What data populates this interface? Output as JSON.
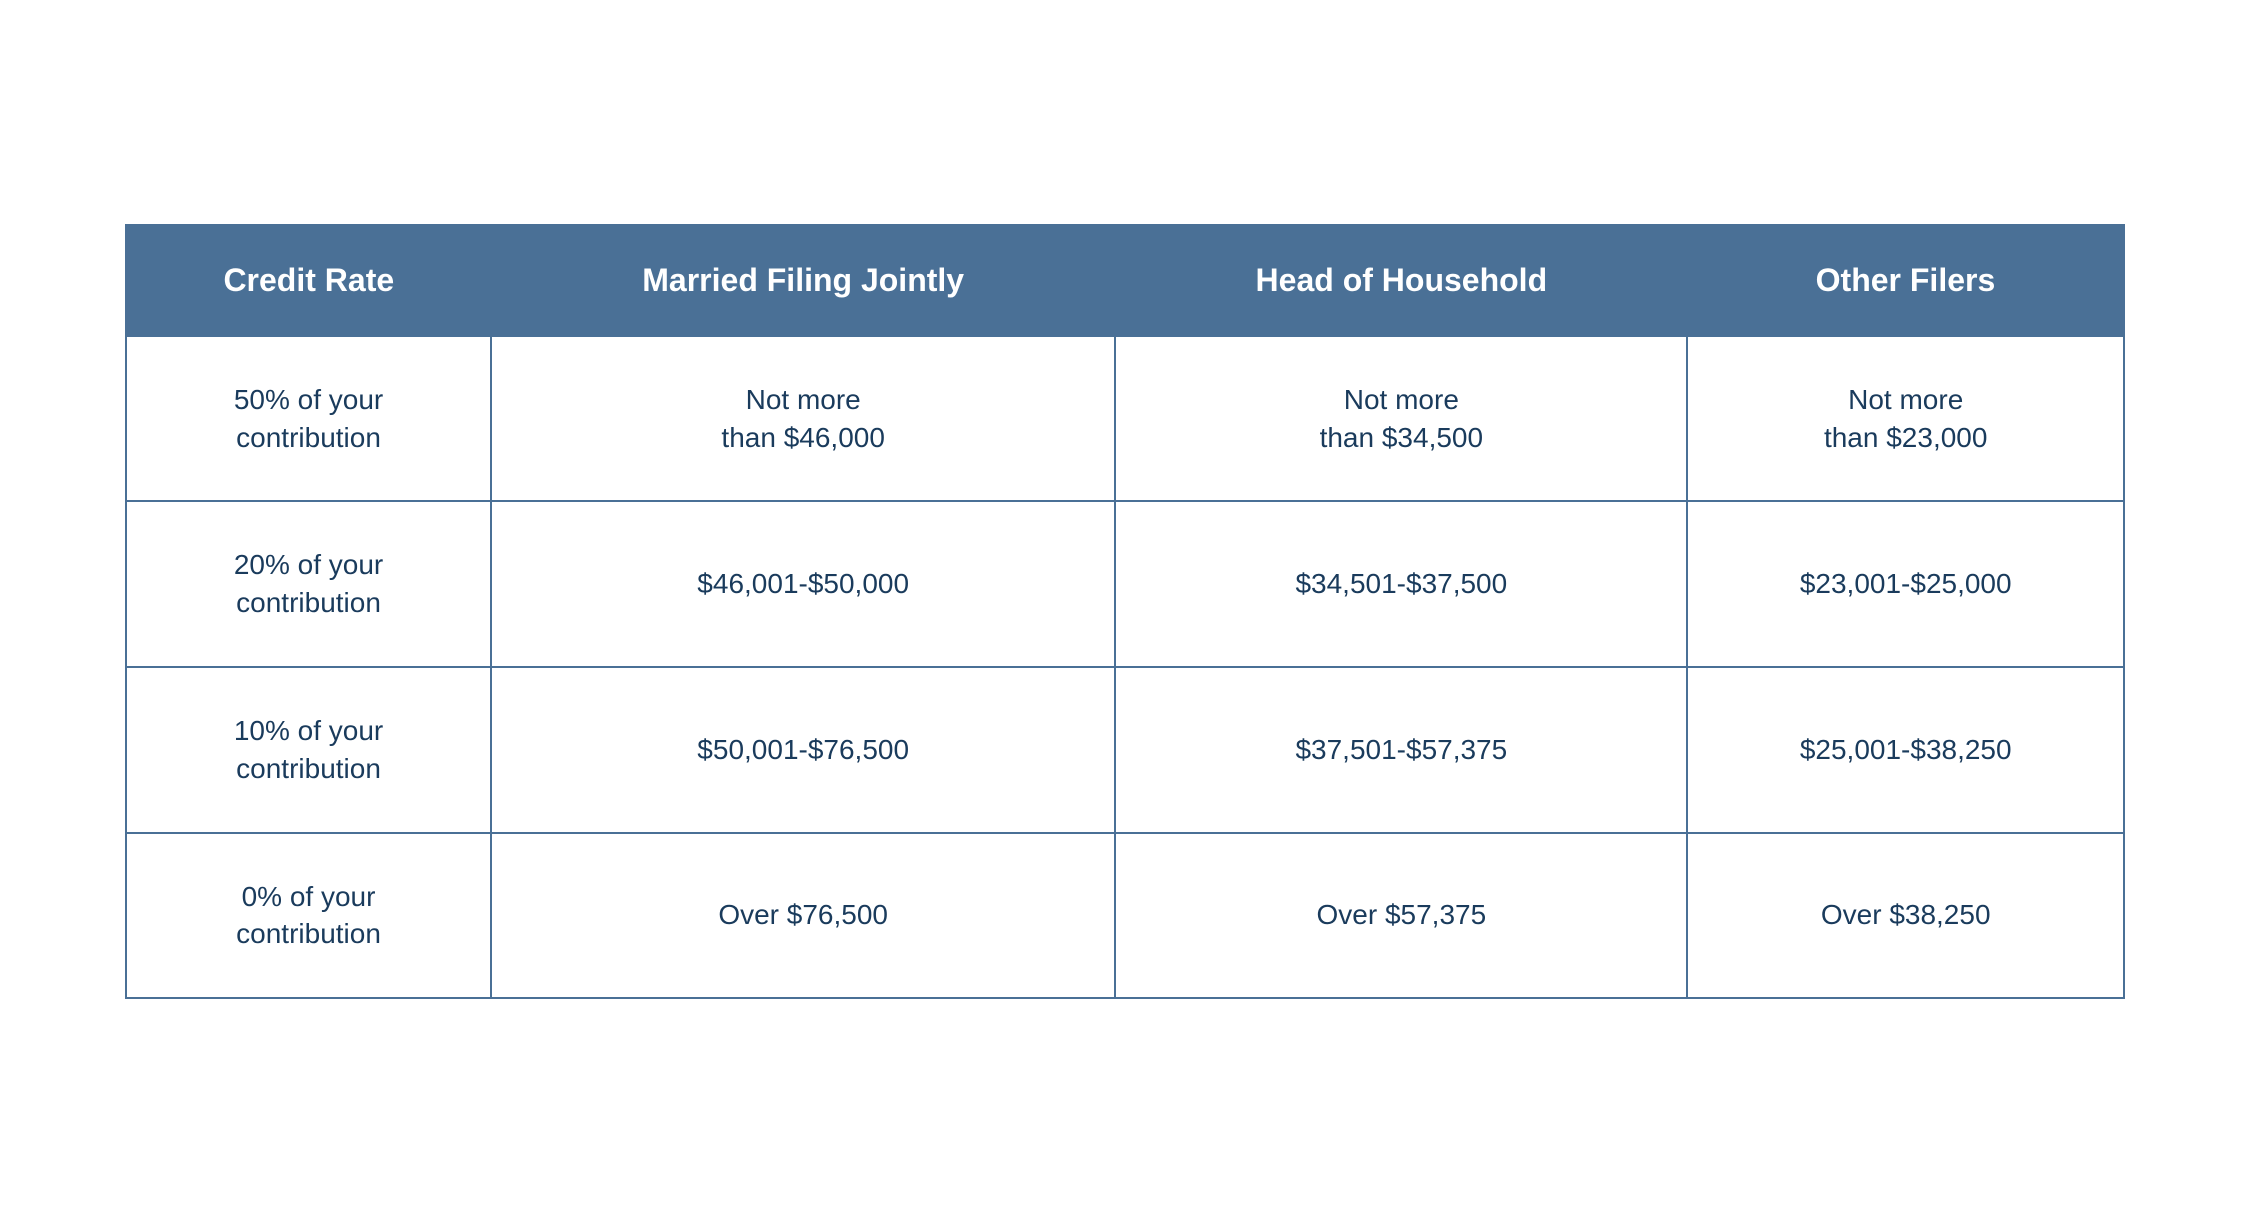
{
  "table": {
    "type": "table",
    "header_bg_color": "#4a7096",
    "header_text_color": "#ffffff",
    "cell_text_color": "#1a3b5c",
    "border_color": "#4a7096",
    "background_color": "#ffffff",
    "header_fontsize": 32,
    "cell_fontsize": 28,
    "columns": [
      "Credit Rate",
      "Married Filing Jointly",
      "Head of Household",
      "Other Filers"
    ],
    "rows": [
      {
        "credit_rate_line1": "50% of your",
        "credit_rate_line2": "contribution",
        "married_line1": "Not more",
        "married_line2": "than $46,000",
        "head_line1": "Not more",
        "head_line2": "than $34,500",
        "other_line1": "Not more",
        "other_line2": "than $23,000"
      },
      {
        "credit_rate_line1": "20% of your",
        "credit_rate_line2": "contribution",
        "married_line1": "$46,001-$50,000",
        "married_line2": "",
        "head_line1": "$34,501-$37,500",
        "head_line2": "",
        "other_line1": "$23,001-$25,000",
        "other_line2": ""
      },
      {
        "credit_rate_line1": "10% of your",
        "credit_rate_line2": "contribution",
        "married_line1": "$50,001-$76,500",
        "married_line2": "",
        "head_line1": "$37,501-$57,375",
        "head_line2": "",
        "other_line1": "$25,001-$38,250",
        "other_line2": ""
      },
      {
        "credit_rate_line1": "0% of your",
        "credit_rate_line2": "contribution",
        "married_line1": "Over $76,500",
        "married_line2": "",
        "head_line1": "Over $57,375",
        "head_line2": "",
        "other_line1": "Over $38,250",
        "other_line2": ""
      }
    ]
  }
}
